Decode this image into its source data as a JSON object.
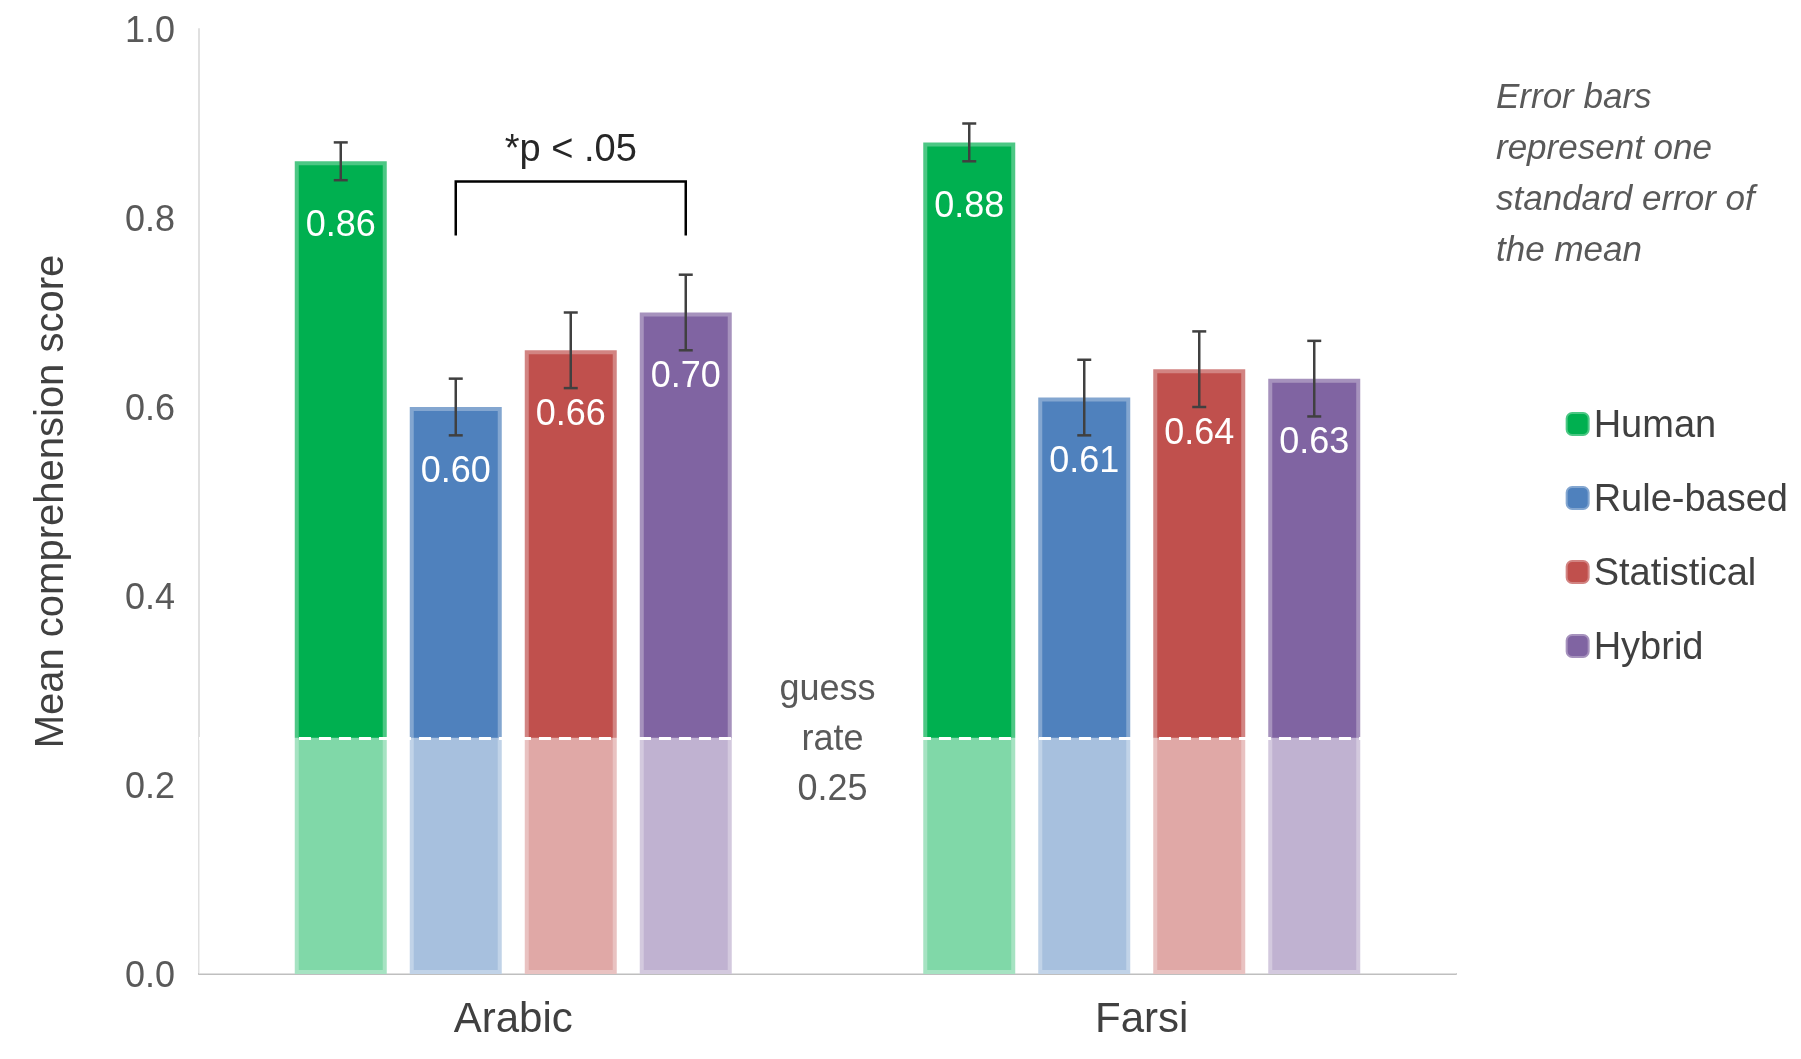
{
  "chart_data": {
    "type": "bar",
    "ylabel": "Mean comprehension score",
    "categories": [
      "Arabic",
      "Farsi"
    ],
    "series": [
      {
        "name": "Human",
        "color": "#00b050",
        "values": [
          0.86,
          0.88
        ],
        "value_labels": [
          "0.86",
          "0.88"
        ],
        "errors": [
          0.02,
          0.02
        ]
      },
      {
        "name": "Rule-based",
        "color": "#4f81bd",
        "values": [
          0.6,
          0.61
        ],
        "value_labels": [
          "0.60",
          "0.61"
        ],
        "errors": [
          0.03,
          0.04
        ]
      },
      {
        "name": "Statistical",
        "color": "#c0504d",
        "values": [
          0.66,
          0.64
        ],
        "value_labels": [
          "0.66",
          "0.64"
        ],
        "errors": [
          0.04,
          0.04
        ]
      },
      {
        "name": "Hybrid",
        "color": "#8064a2",
        "values": [
          0.7,
          0.63
        ],
        "value_labels": [
          "0.70",
          "0.63"
        ],
        "errors": [
          0.04,
          0.04
        ]
      }
    ],
    "ylim": [
      0,
      1
    ],
    "yticks": [
      {
        "value": 0,
        "label": "0.0"
      },
      0.2,
      0.4,
      0.6,
      0.8,
      {
        "value": 1,
        "label": "1.0"
      }
    ],
    "grid": false,
    "legend": "right",
    "ref_lines": [
      {
        "axis": "y",
        "value": 0.25,
        "label": "guess rate 0.25",
        "color": "#ffffff",
        "line_style": "dashed"
      }
    ],
    "bands": [
      {
        "axis": "y",
        "from": 0,
        "to": 0.25,
        "color": "#ffffff"
      }
    ],
    "annotations": [
      "*p < .05",
      "Error bars represent one standard error of the mean"
    ]
  }
}
